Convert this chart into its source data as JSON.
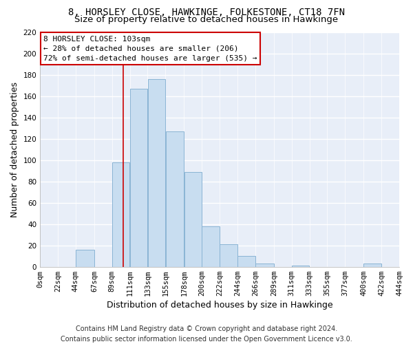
{
  "title": "8, HORSLEY CLOSE, HAWKINGE, FOLKESTONE, CT18 7FN",
  "subtitle": "Size of property relative to detached houses in Hawkinge",
  "xlabel": "Distribution of detached houses by size in Hawkinge",
  "ylabel": "Number of detached properties",
  "bar_left_edges": [
    0,
    22,
    44,
    67,
    89,
    111,
    133,
    155,
    178,
    200,
    222,
    244,
    266,
    289,
    311,
    333,
    355,
    377,
    400,
    422
  ],
  "bar_widths": [
    22,
    22,
    23,
    22,
    22,
    22,
    22,
    23,
    22,
    22,
    22,
    22,
    23,
    22,
    22,
    22,
    22,
    23,
    22,
    22
  ],
  "bar_heights": [
    0,
    0,
    16,
    0,
    98,
    167,
    176,
    127,
    89,
    38,
    21,
    10,
    3,
    0,
    1,
    0,
    0,
    0,
    3,
    0
  ],
  "bar_color": "#c8ddf0",
  "bar_edgecolor": "#8ab4d4",
  "tick_labels": [
    "0sqm",
    "22sqm",
    "44sqm",
    "67sqm",
    "89sqm",
    "111sqm",
    "133sqm",
    "155sqm",
    "178sqm",
    "200sqm",
    "222sqm",
    "244sqm",
    "266sqm",
    "289sqm",
    "311sqm",
    "333sqm",
    "355sqm",
    "377sqm",
    "400sqm",
    "422sqm",
    "444sqm"
  ],
  "ylim": [
    0,
    220
  ],
  "yticks": [
    0,
    20,
    40,
    60,
    80,
    100,
    120,
    140,
    160,
    180,
    200,
    220
  ],
  "property_line_x": 103,
  "property_line_color": "#cc0000",
  "annotation_title": "8 HORSLEY CLOSE: 103sqm",
  "annotation_line1": "← 28% of detached houses are smaller (206)",
  "annotation_line2": "72% of semi-detached houses are larger (535) →",
  "annotation_box_color": "white",
  "annotation_box_edgecolor": "#cc0000",
  "footer_line1": "Contains HM Land Registry data © Crown copyright and database right 2024.",
  "footer_line2": "Contains public sector information licensed under the Open Government Licence v3.0.",
  "background_color": "#ffffff",
  "plot_bg_color": "#e8eef8",
  "title_fontsize": 10,
  "subtitle_fontsize": 9.5,
  "axis_label_fontsize": 9,
  "tick_fontsize": 7.5,
  "annotation_fontsize": 8,
  "footer_fontsize": 7
}
